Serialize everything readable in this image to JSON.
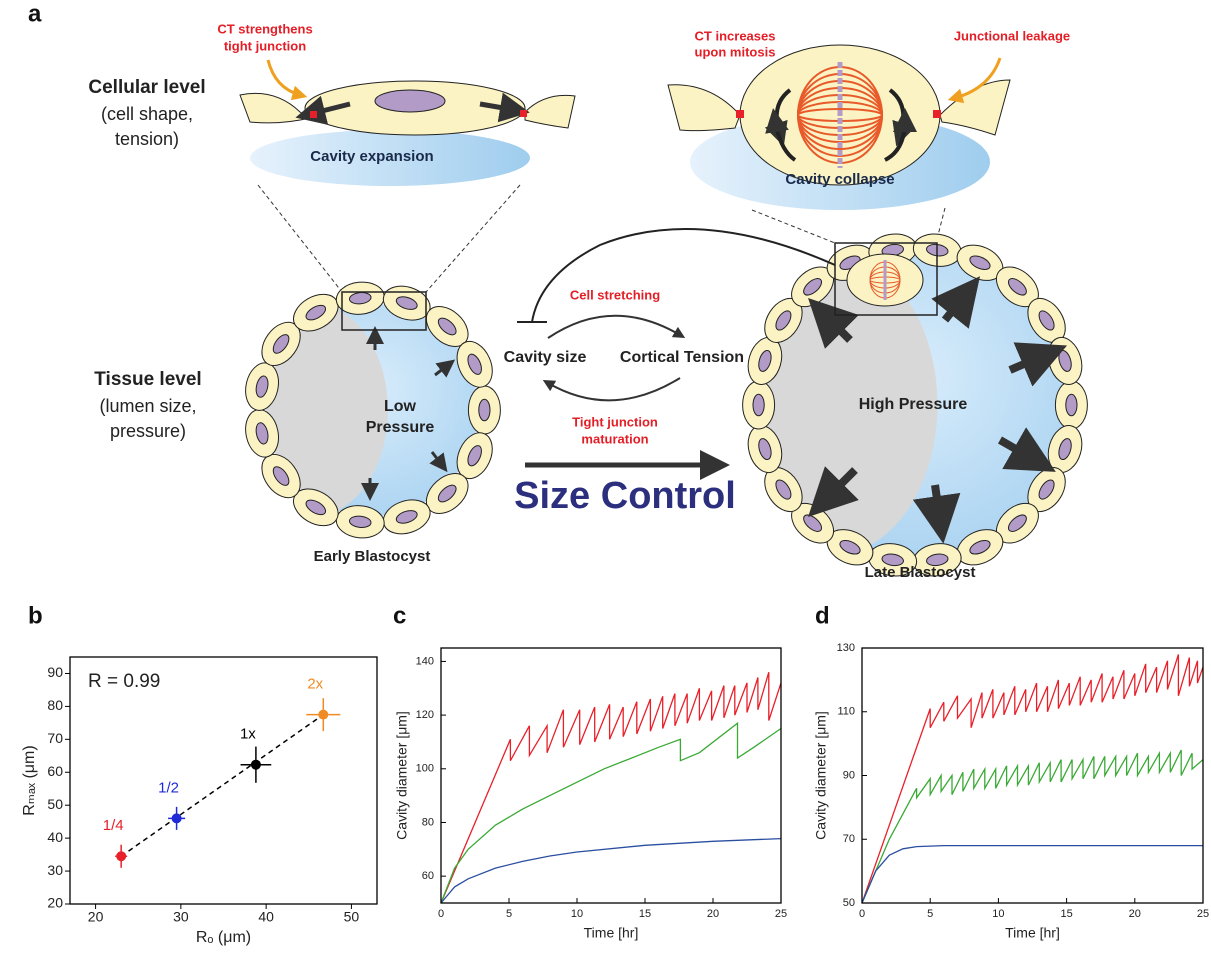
{
  "figure": {
    "panel_labels": [
      "a",
      "b",
      "c",
      "d"
    ],
    "cellular_level": {
      "title": "Cellular level",
      "detail": [
        "(cell shape,",
        "tension)"
      ]
    },
    "tissue_level": {
      "title": "Tissue level",
      "detail": [
        "(lumen size,",
        "pressure)"
      ]
    },
    "ct_strengthens": [
      "CT strengthens",
      "tight junction"
    ],
    "cavity_expansion": "Cavity expansion",
    "ct_mitosis": [
      "CT increases",
      "upon mitosis"
    ],
    "junctional_leakage": "Junctional leakage",
    "cavity_collapse": "Cavity collapse",
    "low_pressure": [
      "Low",
      "Pressure"
    ],
    "high_pressure": "High Pressure",
    "cell_stretching": "Cell stretching",
    "cavity_size": "Cavity size",
    "cortical_tension": "Cortical Tension",
    "tight_junction": [
      "Tight junction",
      "maturation"
    ],
    "size_control": "Size Control",
    "early": "Early Blastocyst",
    "late": "Late Blastocyst"
  },
  "chart_data": [
    {
      "type": "scatter",
      "x_label": "Rₒ (μm)",
      "y_label": "Rₘₐₓ (μm)",
      "annotation": "R = 0.99",
      "xlim": [
        17,
        53
      ],
      "ylim": [
        20,
        95
      ],
      "xticks": [
        20,
        30,
        40,
        50
      ],
      "yticks": [
        20,
        30,
        40,
        50,
        60,
        70,
        80,
        90
      ],
      "series": [
        {
          "name": "1/4",
          "color": "#e8202a",
          "x": [
            23
          ],
          "values": [
            34.5
          ],
          "xerr": [
            0.7
          ],
          "yerr": [
            3.5
          ]
        },
        {
          "name": "1/2",
          "color": "#1f2bd6",
          "x": [
            29.5
          ],
          "values": [
            46
          ],
          "xerr": [
            1
          ],
          "yerr": [
            3.5
          ]
        },
        {
          "name": "1x",
          "color": "#000000",
          "x": [
            38.8
          ],
          "values": [
            62.3
          ],
          "xerr": [
            1.8
          ],
          "yerr": [
            5.5
          ]
        },
        {
          "name": "2x",
          "color": "#f08a24",
          "x": [
            46.7
          ],
          "values": [
            77.5
          ],
          "xerr": [
            2
          ],
          "yerr": [
            5
          ]
        }
      ]
    },
    {
      "type": "line",
      "x_label": "Time [hr]",
      "y_label": "Cavity diameter [μm]",
      "xlim": [
        0,
        25
      ],
      "ylim": [
        50,
        145
      ],
      "xticks": [
        0,
        5,
        10,
        15,
        20,
        25
      ],
      "yticks": [
        60,
        80,
        100,
        120,
        140
      ],
      "series": [
        {
          "color": "#e8202a",
          "x": [
            0,
            5.1,
            5.1,
            6.5,
            6.5,
            7.8,
            7.8,
            9.0,
            9.0,
            10.2,
            10.2,
            11.3,
            11.3,
            12.4,
            12.4,
            13.4,
            13.4,
            14.4,
            14.4,
            15.4,
            15.4,
            16.3,
            16.3,
            17.2,
            17.2,
            18.1,
            18.1,
            19.0,
            19.0,
            19.9,
            19.9,
            20.8,
            20.8,
            21.6,
            21.6,
            22.5,
            22.5,
            23.3,
            23.3,
            24.1,
            24.1,
            25
          ],
          "values": [
            50,
            111,
            103,
            116,
            105,
            116,
            106,
            122,
            108,
            122,
            109,
            123,
            110,
            124,
            111,
            123,
            112,
            125,
            113,
            126,
            114,
            127,
            115,
            128,
            116,
            128,
            117,
            130,
            118,
            129,
            118,
            131,
            119,
            131,
            120,
            132,
            121,
            134,
            122,
            136,
            118,
            132
          ]
        },
        {
          "color": "#3aa935",
          "x": [
            0,
            1,
            2,
            4,
            6,
            8,
            10,
            12,
            14,
            16,
            17.6,
            17.6,
            19,
            21.8,
            21.8,
            23,
            25
          ],
          "values": [
            50,
            63,
            70,
            79,
            85,
            90,
            95,
            100,
            104,
            108,
            111,
            103,
            106,
            117,
            104,
            108,
            115
          ]
        },
        {
          "color": "#2a4ea0",
          "x": [
            0,
            1,
            2,
            4,
            6,
            8,
            10,
            15,
            20,
            25
          ],
          "values": [
            50,
            56,
            59,
            63,
            65.5,
            67.5,
            69,
            71.5,
            73,
            74
          ]
        }
      ]
    },
    {
      "type": "line",
      "x_label": "Time [hr]",
      "y_label": "Cavity diameter [μm]",
      "xlim": [
        0,
        25
      ],
      "ylim": [
        50,
        130
      ],
      "xticks": [
        0,
        5,
        10,
        15,
        20,
        25
      ],
      "yticks": [
        50,
        70,
        90,
        110,
        130
      ],
      "series": [
        {
          "color": "#e8202a",
          "x": [
            0,
            5,
            5,
            6,
            6,
            7,
            7,
            8,
            8,
            8.8,
            8.8,
            9.6,
            9.6,
            10.4,
            10.4,
            11.2,
            11.2,
            12,
            12,
            12.8,
            12.8,
            13.6,
            13.6,
            14.4,
            14.4,
            15.2,
            15.2,
            16,
            16,
            16.8,
            16.8,
            17.6,
            17.6,
            18.4,
            18.4,
            19.2,
            19.2,
            20,
            20,
            20.8,
            20.8,
            21.6,
            21.6,
            22.4,
            22.4,
            23.2,
            23.2,
            24,
            24,
            24.6,
            24.6,
            25
          ],
          "values": [
            50,
            111,
            105,
            113,
            107,
            115,
            108,
            114,
            105,
            116,
            108,
            117,
            108,
            116,
            109,
            118,
            109,
            117,
            110,
            119,
            110,
            118,
            110,
            120,
            111,
            119,
            112,
            121,
            112,
            120,
            113,
            122,
            113,
            121,
            114,
            123,
            114,
            122,
            115,
            125,
            116,
            124,
            116,
            126,
            117,
            128,
            115,
            127,
            118,
            126,
            119,
            124
          ]
        },
        {
          "color": "#3aa935",
          "x": [
            0,
            2,
            4,
            4,
            5,
            5,
            5.8,
            5.8,
            6.6,
            6.6,
            7.4,
            7.4,
            8.2,
            8.2,
            9,
            9,
            9.8,
            9.8,
            10.6,
            10.6,
            11.4,
            11.4,
            12.2,
            12.2,
            13,
            13,
            13.8,
            13.8,
            14.6,
            14.6,
            15.4,
            15.4,
            16.2,
            16.2,
            17,
            17,
            17.8,
            17.8,
            18.6,
            18.6,
            19.4,
            19.4,
            20.2,
            20.2,
            21,
            21,
            21.8,
            21.8,
            22.6,
            22.6,
            23.4,
            23.4,
            24.2,
            24.2,
            25
          ],
          "values": [
            50,
            70,
            86,
            83,
            89,
            84,
            90,
            85,
            90,
            84,
            91,
            85,
            92,
            86,
            92,
            86,
            92,
            86,
            93,
            87,
            93,
            87,
            93,
            87,
            94,
            88,
            94,
            88,
            95,
            88,
            95,
            89,
            95,
            89,
            96,
            89,
            96,
            90,
            96,
            90,
            96,
            90,
            97,
            90,
            96,
            91,
            97,
            91,
            97,
            91,
            98,
            90,
            97,
            92,
            95
          ]
        },
        {
          "color": "#2a4ea0",
          "x": [
            0,
            1,
            2,
            3,
            4,
            6,
            10,
            25
          ],
          "values": [
            50,
            60,
            65,
            67,
            67.7,
            68,
            68,
            68
          ]
        }
      ]
    }
  ]
}
